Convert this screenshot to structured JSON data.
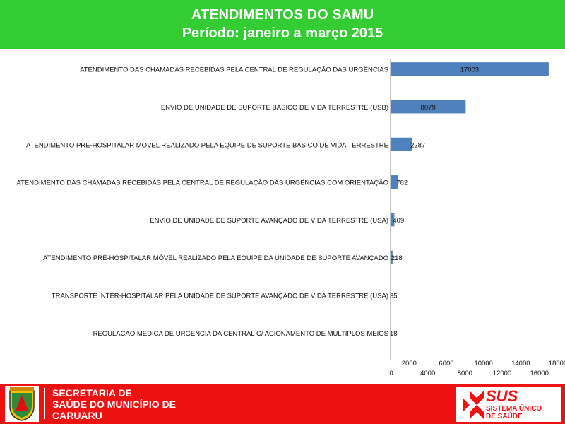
{
  "header": {
    "title": "ATENDIMENTOS DO SAMU",
    "period": "Período: janeiro  a março 2015"
  },
  "chart_data": {
    "type": "bar",
    "orientation": "horizontal",
    "categories": [
      "ATENDIMENTO DAS CHAMADAS RECEBIDAS PELA CENTRAL DE REGULAÇÃO DAS URGÊNCIAS",
      "ENVIO DE UNIDADE DE SUPORTE BASICO DE VIDA TERRESTRE (USB)",
      "ATENDIMENTO PRÉ-HOSPITALAR MOVEL REALIZADO PELA EQUIPE DE SUPORTE BASICO DE VIDA TERRESTRE",
      "ATENDIMENTO DAS CHAMADAS RECEBIDAS PELA CENTRAL DE REGULAÇÃO DAS URGÊNCIAS COM ORIENTAÇÃO",
      "ENVIO DE UNIDADE DE SUPORTE AVANÇADO DE VIDA TERRESTRE (USA)",
      "ATENDIMENTO PRÉ-HOSPITALAR MÓVEL REALIZADO PELA EQUIPE DA UNIDADE DE SUPORTE AVANÇADO",
      "TRANSPORTE INTER-HOSPITALAR PELA UNIDADE DE SUPORTE AVANÇADO DE VIDA TERRESTRE (USA)",
      "REGULACAO MEDICA DE URGENCIA DA CENTRAL  C/ ACIONAMENTO DE MULTIPLOS MEIOS"
    ],
    "values": [
      17003,
      8079,
      2287,
      782,
      409,
      218,
      35,
      18
    ],
    "labels": [
      "17003",
      "8079",
      "2287",
      "782",
      "409",
      "218",
      "35",
      "18"
    ],
    "xlim": [
      0,
      18000
    ],
    "ticks_top": [
      "2000",
      "6000",
      "10000",
      "14000",
      "18000"
    ],
    "ticks_bottom": [
      "0",
      "4000",
      "8000",
      "12000",
      "16000"
    ],
    "tick_values_top": [
      2000,
      6000,
      10000,
      14000,
      18000
    ],
    "tick_values_bottom": [
      0,
      4000,
      8000,
      12000,
      16000
    ],
    "bar_color": "#4f81bd",
    "grid": false,
    "legend": "none"
  },
  "footer": {
    "line1": "SECRETARIA DE",
    "line2": "SAÚDE DO MUNICÍPIO DE",
    "line3": "CARUARU",
    "sus_main": "SUS",
    "sus_sub1": "SISTEMA ÚNICO",
    "sus_sub2": "DE SAÚDE"
  },
  "colors": {
    "header_bg": "#33cc33",
    "footer_bg": "#ee1111",
    "bar": "#4f81bd"
  },
  "icons": [
    "caruaru-crest-icon",
    "sus-cross-logo-icon"
  ]
}
